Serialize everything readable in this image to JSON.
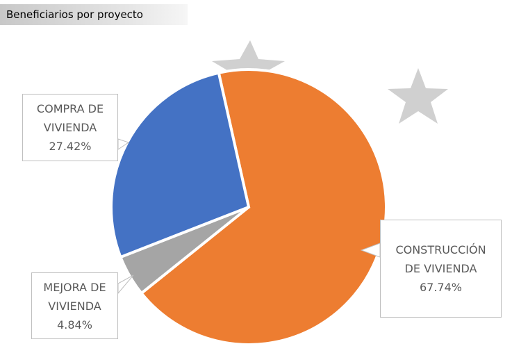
{
  "chart_data": {
    "type": "pie",
    "title": "Beneficiarios por proyecto",
    "categories": [
      "CONSTRUCCIÓN DE VIVIENDA",
      "MEJORA DE VIVIENDA",
      "COMPRA DE VIVIENDA"
    ],
    "values": [
      67.74,
      4.84,
      27.42
    ],
    "value_labels": [
      "67.74%",
      "4.84%",
      "27.42%"
    ],
    "colors": [
      "#ed7d31",
      "#a5a5a5",
      "#4472c4"
    ]
  }
}
